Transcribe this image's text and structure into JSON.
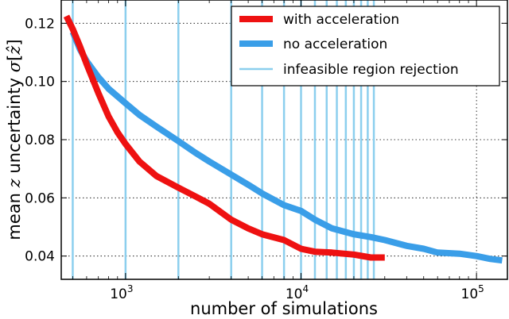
{
  "chart_data": {
    "type": "line",
    "xscale": "log",
    "xlabel": "number of simulations",
    "ylabel": "mean z uncertainty σ[ẑ]",
    "ylabel_parts": {
      "pre": "mean ",
      "var": "z",
      "mid": " uncertainty ",
      "sigma": "σ",
      "open": "[",
      "zhat": "ẑ",
      "close": "]"
    },
    "xlim": [
      430,
      150000
    ],
    "ylim": [
      0.032,
      0.128
    ],
    "grid": true,
    "legend_position": "top-right",
    "x_ticks": [
      {
        "value": 1000,
        "base": "10",
        "exp": "3"
      },
      {
        "value": 10000,
        "base": "10",
        "exp": "4"
      },
      {
        "value": 100000,
        "base": "10",
        "exp": "5"
      }
    ],
    "y_ticks": [
      {
        "value": 0.04,
        "label": "0.04"
      },
      {
        "value": 0.06,
        "label": "0.06"
      },
      {
        "value": 0.08,
        "label": "0.08"
      },
      {
        "value": 0.1,
        "label": "0.10"
      },
      {
        "value": 0.12,
        "label": "0.12"
      }
    ],
    "series": [
      {
        "name": "with acceleration",
        "color": "#ee1111",
        "x": [
          460,
          500,
          550,
          600,
          700,
          800,
          900,
          1000,
          1200,
          1500,
          2000,
          2500,
          3000,
          4000,
          5000,
          6000,
          8000,
          10000,
          12000,
          15000,
          20000,
          25000,
          30000
        ],
        "y": [
          0.1225,
          0.118,
          0.112,
          0.106,
          0.096,
          0.088,
          0.0825,
          0.0785,
          0.0725,
          0.0675,
          0.0635,
          0.0605,
          0.058,
          0.0525,
          0.0495,
          0.0475,
          0.0455,
          0.0425,
          0.0415,
          0.0412,
          0.0405,
          0.0395,
          0.0395
        ]
      },
      {
        "name": "no acceleration",
        "color": "#3a9ee8",
        "x": [
          500,
          550,
          600,
          700,
          800,
          1000,
          1200,
          1500,
          2000,
          2500,
          3000,
          4000,
          5000,
          6000,
          8000,
          10000,
          12000,
          15000,
          20000,
          25000,
          30000,
          40000,
          50000,
          60000,
          80000,
          100000,
          120000,
          140000
        ],
        "y": [
          0.117,
          0.111,
          0.107,
          0.1015,
          0.0975,
          0.0925,
          0.0885,
          0.0845,
          0.0795,
          0.0755,
          0.0725,
          0.068,
          0.0645,
          0.0615,
          0.0575,
          0.0555,
          0.0525,
          0.0495,
          0.0475,
          0.0465,
          0.0455,
          0.0435,
          0.0425,
          0.0412,
          0.0408,
          0.04,
          0.039,
          0.0385
        ]
      }
    ],
    "vertical_lines": {
      "name": "infeasible region rejection",
      "color": "#8ccfee",
      "x": [
        500,
        1000,
        2000,
        4000,
        6000,
        8000,
        10000,
        12000,
        14000,
        16000,
        18000,
        20000,
        22000,
        24000,
        26000
      ]
    }
  }
}
